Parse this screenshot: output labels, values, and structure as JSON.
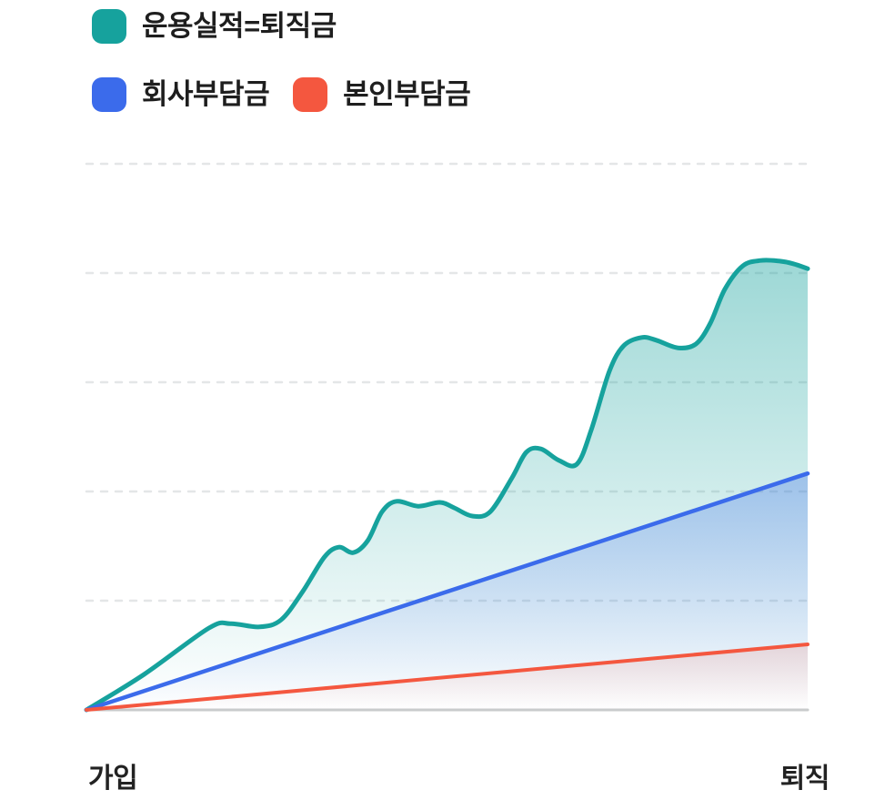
{
  "legend": {
    "items": [
      {
        "id": "performance",
        "label": "운용실적=퇴직금",
        "color": "#16A29D"
      },
      {
        "id": "company",
        "label": "회사부담금",
        "color": "#3B6BEB"
      },
      {
        "id": "personal",
        "label": "본인부담금",
        "color": "#F4573F"
      }
    ]
  },
  "axis": {
    "left_label": "가입",
    "right_label": "퇴직"
  },
  "chart_data": {
    "type": "area",
    "title": "",
    "xlabel": "",
    "ylabel": "",
    "x_tick_labels": [
      "가입",
      "퇴직"
    ],
    "x_range": [
      0,
      1
    ],
    "ylim": [
      0,
      100
    ],
    "grid": {
      "values": [
        20,
        40,
        60,
        80,
        100
      ],
      "style": "dashed",
      "orientation": "horizontal"
    },
    "legend_position": "top-left",
    "colors": {
      "grid": "#E4E6E7",
      "baseline": "#C9CBCC",
      "label_text": "#1E1E1E"
    },
    "series": [
      {
        "id": "performance",
        "name": "운용실적=퇴직금",
        "color": "#16A29D",
        "smooth": true,
        "stroke_width": 5,
        "fill_opacity": 0.42,
        "points": [
          [
            0,
            0
          ],
          [
            0.08,
            6.5
          ],
          [
            0.17,
            15.0
          ],
          [
            0.2,
            15.8
          ],
          [
            0.24,
            15.2
          ],
          [
            0.27,
            16.5
          ],
          [
            0.3,
            21.7
          ],
          [
            0.33,
            28.0
          ],
          [
            0.35,
            29.8
          ],
          [
            0.37,
            28.8
          ],
          [
            0.39,
            31.0
          ],
          [
            0.41,
            36.3
          ],
          [
            0.43,
            38.2
          ],
          [
            0.46,
            37.3
          ],
          [
            0.49,
            38.0
          ],
          [
            0.51,
            37.0
          ],
          [
            0.535,
            35.5
          ],
          [
            0.56,
            36.3
          ],
          [
            0.59,
            42.5
          ],
          [
            0.61,
            47.2
          ],
          [
            0.63,
            47.8
          ],
          [
            0.655,
            45.7
          ],
          [
            0.68,
            45.0
          ],
          [
            0.7,
            51.3
          ],
          [
            0.725,
            62.0
          ],
          [
            0.745,
            66.7
          ],
          [
            0.77,
            68.2
          ],
          [
            0.79,
            67.7
          ],
          [
            0.82,
            66.3
          ],
          [
            0.845,
            67.0
          ],
          [
            0.865,
            70.8
          ],
          [
            0.885,
            77.0
          ],
          [
            0.91,
            81.3
          ],
          [
            0.935,
            82.3
          ],
          [
            0.96,
            82.2
          ],
          [
            0.98,
            81.7
          ],
          [
            1,
            80.8
          ]
        ]
      },
      {
        "id": "company",
        "name": "회사부담금",
        "color": "#3B6BEB",
        "smooth": false,
        "stroke_width": 4.5,
        "fill_opacity": 0.32,
        "points": [
          [
            0,
            0
          ],
          [
            1,
            43.3
          ]
        ]
      },
      {
        "id": "personal",
        "name": "본인부담금",
        "color": "#F4573F",
        "smooth": false,
        "stroke_width": 4,
        "fill_opacity": 0.16,
        "points": [
          [
            0,
            0
          ],
          [
            1,
            12.0
          ]
        ]
      }
    ]
  }
}
